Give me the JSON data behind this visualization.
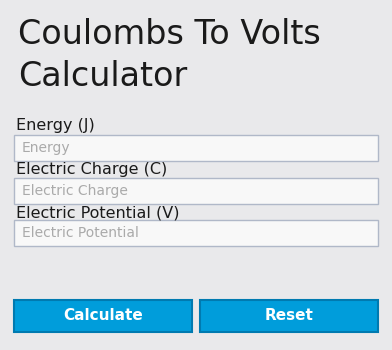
{
  "title_line1": "Coulombs To Volts",
  "title_line2": "Calculator",
  "bg_color": "#e9e9eb",
  "title_color": "#1a1a1a",
  "title_fontsize": 24,
  "labels": [
    "Energy (J)",
    "Electric Charge (C)",
    "Electric Potential (V)"
  ],
  "label_fontsize": 11.5,
  "label_color": "#1a1a1a",
  "placeholders": [
    "Energy",
    "Electric Charge",
    "Electric Potential"
  ],
  "placeholder_color": "#aaaaaa",
  "placeholder_fontsize": 10,
  "input_bg": "#f8f8f8",
  "input_border": "#b0b8c8",
  "btn_calculate_label": "Calculate",
  "btn_reset_label": "Reset",
  "btn_color": "#009ddb",
  "btn_border_color": "#007ab0",
  "btn_text_color": "#ffffff",
  "btn_fontsize": 11,
  "figw": 3.92,
  "figh": 3.5,
  "dpi": 100
}
